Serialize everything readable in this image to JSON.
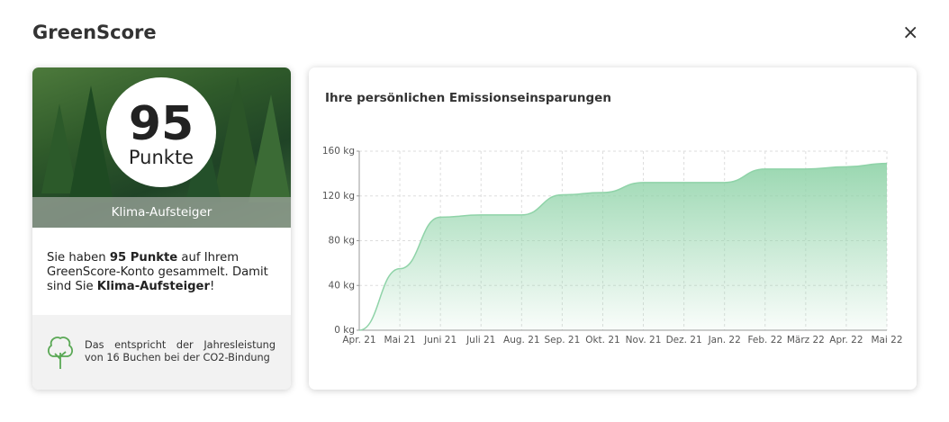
{
  "header": {
    "title": "GreenScore",
    "close": "×"
  },
  "score_card": {
    "score": "95",
    "unit": "Punkte",
    "level": "Klima-Aufsteiger",
    "description": [
      "Sie haben ",
      "95 Punkte",
      " auf Ihrem GreenScore-Konto gesammelt. Damit sind Sie ",
      "Klima-Aufsteiger",
      "!"
    ],
    "equivalent": "Das entspricht der Jahresleistung von 16 Buchen bei der CO2-Bindung"
  },
  "chart_data": {
    "type": "area",
    "title": "Ihre persönlichen Emissionseinsparungen",
    "categories": [
      "Apr. 21",
      "Mai 21",
      "Juni 21",
      "Juli 21",
      "Aug. 21",
      "Sep. 21",
      "Okt. 21",
      "Nov. 21",
      "Dez. 21",
      "Jan. 22",
      "Feb. 22",
      "März 22",
      "Apr. 22",
      "Mai 22"
    ],
    "values": [
      0,
      55,
      101,
      103,
      103,
      121,
      123,
      132,
      132,
      132,
      144,
      144,
      146,
      149
    ],
    "color": "#8fd3a8",
    "ylim": [
      0,
      160
    ],
    "yticks": [
      {
        "value": 0,
        "label": "0 kg"
      },
      {
        "value": 40,
        "label": "40 kg"
      },
      {
        "value": 80,
        "label": "80 kg"
      },
      {
        "value": 120,
        "label": "120 kg"
      },
      {
        "value": 160,
        "label": "160 kg"
      }
    ],
    "grid": true
  }
}
